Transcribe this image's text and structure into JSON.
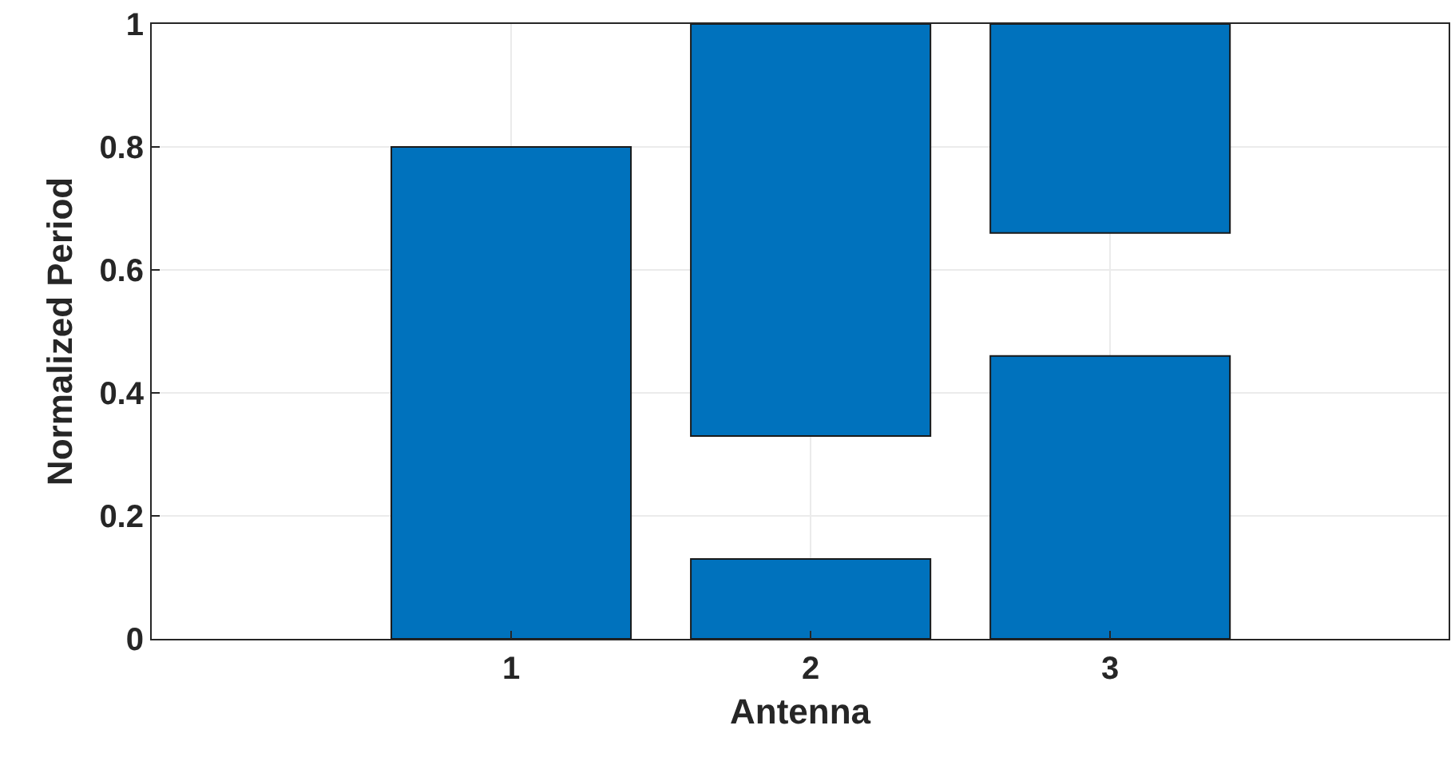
{
  "chart_data": {
    "type": "bar",
    "xlabel": "Antenna",
    "ylabel": "Normalized Period",
    "series": [
      {
        "color": "#0072bd",
        "x": [
          1,
          2,
          3
        ],
        "base": [
          0,
          0,
          0
        ],
        "values": [
          0.8,
          0.13,
          0.46
        ]
      },
      {
        "color": "#0072bd",
        "x": [
          2,
          3
        ],
        "base": [
          0.33,
          0.66
        ],
        "values": [
          0.67,
          0.34
        ]
      }
    ],
    "xlim": [
      -0.2,
      4.13
    ],
    "xticks": [
      1,
      2,
      3
    ],
    "ylim": [
      0,
      1
    ],
    "yticks": [
      0,
      0.2,
      0.4,
      0.6,
      0.8,
      1
    ],
    "grid": true
  }
}
